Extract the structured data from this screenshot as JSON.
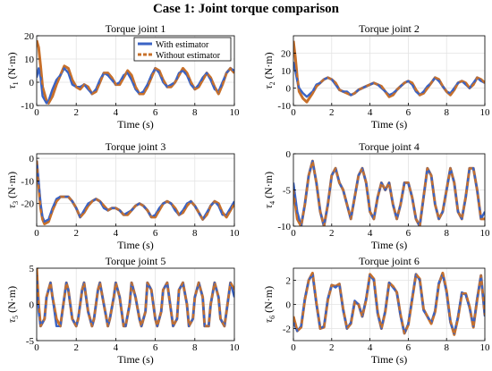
{
  "figure_title": "Case 1: Joint torque comparison",
  "colors": {
    "with_estimator": "#3a63c4",
    "without_estimator": "#c8702a",
    "axes": "#000000",
    "grid": "#e3e3e3"
  },
  "chart_data": [
    {
      "type": "line",
      "title": "Torque joint 1",
      "xlabel": "Time (s)",
      "ylabel_symbol": "τ",
      "ylabel_sub": "1",
      "ylabel_unit": "(N·m)",
      "xlim": [
        0,
        10
      ],
      "ylim": [
        -10,
        20
      ],
      "xticks": [
        0,
        2,
        4,
        6,
        8,
        10
      ],
      "yticks": [
        -10,
        0,
        10,
        20
      ],
      "grid": true,
      "legend": {
        "position": "top-right",
        "entries": [
          "With estimator",
          "Without estimator"
        ]
      },
      "x": [
        0,
        0.1,
        0.2,
        0.3,
        0.5,
        0.6,
        0.8,
        1.0,
        1.2,
        1.4,
        1.6,
        1.8,
        2.0,
        2.2,
        2.4,
        2.6,
        2.8,
        3.0,
        3.2,
        3.4,
        3.6,
        3.8,
        4.0,
        4.2,
        4.4,
        4.6,
        4.8,
        5.0,
        5.2,
        5.4,
        5.6,
        5.8,
        6.0,
        6.2,
        6.4,
        6.6,
        6.8,
        7.0,
        7.2,
        7.4,
        7.6,
        7.8,
        8.0,
        8.2,
        8.4,
        8.6,
        8.8,
        9.0,
        9.2,
        9.4,
        9.6,
        9.8,
        10.0
      ],
      "series": [
        {
          "name": "With estimator",
          "y": [
            2,
            6,
            2,
            -6,
            -9,
            -8,
            -3,
            1,
            3,
            6,
            4,
            -1,
            -2,
            -2,
            -1,
            -3,
            -5,
            -3,
            1,
            4,
            3,
            1,
            -1,
            0,
            3,
            4,
            1,
            -3,
            -5,
            -4,
            -1,
            3,
            6,
            4,
            0,
            -2,
            -1,
            0,
            4,
            5,
            3,
            -1,
            -3,
            -1,
            2,
            4,
            1,
            -3,
            -4,
            0,
            4,
            6,
            5
          ]
        },
        {
          "name": "Without estimator",
          "y": [
            18,
            15,
            7,
            -2,
            -8,
            -9,
            -6,
            -1,
            3,
            7,
            6,
            1,
            -2,
            -3,
            -1,
            -2,
            -5,
            -4,
            0,
            4,
            4,
            2,
            -1,
            -1,
            2,
            5,
            3,
            -2,
            -5,
            -5,
            -2,
            2,
            6,
            5,
            1,
            -2,
            -2,
            0,
            3,
            6,
            4,
            0,
            -3,
            -2,
            1,
            4,
            2,
            -2,
            -5,
            -1,
            4,
            6,
            4
          ]
        }
      ]
    },
    {
      "type": "line",
      "title": "Torque joint 2",
      "xlabel": "Time (s)",
      "ylabel_symbol": "τ",
      "ylabel_sub": "2",
      "ylabel_unit": "(N·m)",
      "xlim": [
        0,
        10
      ],
      "ylim": [
        -10,
        30
      ],
      "xticks": [
        0,
        2,
        4,
        6,
        8,
        10
      ],
      "yticks": [
        -10,
        0,
        10,
        20
      ],
      "grid": true,
      "x": [
        0,
        0.1,
        0.2,
        0.3,
        0.5,
        0.7,
        1.0,
        1.2,
        1.4,
        1.6,
        1.8,
        2.0,
        2.2,
        2.4,
        2.6,
        2.8,
        3.0,
        3.2,
        3.4,
        3.6,
        3.8,
        4.0,
        4.2,
        4.4,
        4.6,
        4.8,
        5.0,
        5.2,
        5.4,
        5.6,
        5.8,
        6.0,
        6.2,
        6.4,
        6.6,
        6.8,
        7.0,
        7.2,
        7.4,
        7.6,
        7.8,
        8.0,
        8.2,
        8.4,
        8.6,
        8.8,
        9.0,
        9.2,
        9.4,
        9.6,
        9.8,
        10.0
      ],
      "series": [
        {
          "name": "With estimator",
          "y": [
            15,
            10,
            4,
            0,
            -3,
            -5,
            -2,
            2,
            3,
            5,
            6,
            5,
            2,
            -1,
            -2,
            -2,
            -4,
            -3,
            -1,
            0,
            1,
            2,
            3,
            2,
            0,
            -2,
            -4,
            -3,
            -1,
            1,
            3,
            4,
            2,
            -2,
            -4,
            -2,
            1,
            3,
            6,
            4,
            1,
            -2,
            -3,
            0,
            3,
            4,
            2,
            0,
            3,
            6,
            4,
            3
          ]
        },
        {
          "name": "Without estimator",
          "y": [
            27,
            18,
            6,
            -2,
            -6,
            -8,
            -3,
            1,
            3,
            5,
            6,
            5,
            3,
            -1,
            -2,
            -3,
            -4,
            -3,
            -1,
            0,
            1,
            2,
            3,
            2,
            1,
            -2,
            -5,
            -4,
            -1,
            1,
            3,
            4,
            3,
            -1,
            -4,
            -3,
            0,
            3,
            6,
            5,
            1,
            -2,
            -4,
            -1,
            3,
            4,
            3,
            0,
            2,
            6,
            5,
            3
          ]
        }
      ]
    },
    {
      "type": "line",
      "title": "Torque joint 3",
      "xlabel": "Time (s)",
      "ylabel_symbol": "τ",
      "ylabel_sub": "3",
      "ylabel_unit": "(N·m)",
      "xlim": [
        0,
        10
      ],
      "ylim": [
        -30,
        2
      ],
      "xticks": [
        0,
        2,
        4,
        6,
        8,
        10
      ],
      "yticks": [
        -20,
        -10,
        0
      ],
      "grid": true,
      "x": [
        0,
        0.1,
        0.2,
        0.3,
        0.4,
        0.6,
        0.8,
        1.0,
        1.2,
        1.4,
        1.6,
        1.8,
        2.0,
        2.2,
        2.4,
        2.6,
        2.8,
        3.0,
        3.2,
        3.4,
        3.6,
        3.8,
        4.0,
        4.2,
        4.4,
        4.6,
        4.8,
        5.0,
        5.2,
        5.4,
        5.6,
        5.8,
        6.0,
        6.2,
        6.4,
        6.6,
        6.8,
        7.0,
        7.2,
        7.4,
        7.6,
        7.8,
        8.0,
        8.2,
        8.4,
        8.6,
        8.8,
        9.0,
        9.2,
        9.4,
        9.6,
        9.8,
        10.0
      ],
      "series": [
        {
          "name": "With estimator",
          "y": [
            -1,
            -10,
            -20,
            -26,
            -28,
            -27,
            -22,
            -18,
            -17,
            -17,
            -17,
            -19,
            -22,
            -26,
            -23,
            -20,
            -19,
            -18,
            -19,
            -22,
            -23,
            -22,
            -22,
            -23,
            -25,
            -24,
            -23,
            -21,
            -20,
            -21,
            -23,
            -26,
            -25,
            -22,
            -20,
            -19,
            -20,
            -23,
            -25,
            -23,
            -20,
            -19,
            -21,
            -24,
            -27,
            -24,
            -21,
            -19,
            -21,
            -25,
            -25,
            -22,
            -19
          ]
        },
        {
          "name": "Without estimator",
          "y": [
            -1,
            -12,
            -22,
            -27,
            -29,
            -28,
            -23,
            -19,
            -17,
            -17,
            -17,
            -19,
            -22,
            -26,
            -24,
            -21,
            -19,
            -18,
            -19,
            -21,
            -23,
            -22,
            -22,
            -23,
            -25,
            -25,
            -23,
            -21,
            -20,
            -21,
            -23,
            -26,
            -26,
            -23,
            -20,
            -19,
            -20,
            -22,
            -25,
            -24,
            -21,
            -19,
            -21,
            -24,
            -27,
            -25,
            -21,
            -19,
            -20,
            -24,
            -26,
            -23,
            -20
          ]
        }
      ]
    },
    {
      "type": "line",
      "title": "Torque joint 4",
      "xlabel": "Time (s)",
      "ylabel_symbol": "τ",
      "ylabel_sub": "4",
      "ylabel_unit": "(N·m)",
      "xlim": [
        0,
        10
      ],
      "ylim": [
        -10,
        0
      ],
      "xticks": [
        0,
        2,
        4,
        6,
        8,
        10
      ],
      "yticks": [
        -10,
        -5,
        0
      ],
      "grid": true,
      "x": [
        0,
        0.2,
        0.4,
        0.6,
        0.8,
        1.0,
        1.2,
        1.4,
        1.6,
        1.8,
        2.0,
        2.2,
        2.4,
        2.6,
        2.8,
        3.0,
        3.2,
        3.4,
        3.6,
        3.8,
        4.0,
        4.2,
        4.4,
        4.6,
        4.8,
        5.0,
        5.2,
        5.4,
        5.6,
        5.8,
        6.0,
        6.2,
        6.4,
        6.6,
        6.8,
        7.0,
        7.2,
        7.4,
        7.6,
        7.8,
        8.0,
        8.2,
        8.4,
        8.6,
        8.8,
        9.0,
        9.2,
        9.4,
        9.6,
        9.8,
        10.0
      ],
      "series": [
        {
          "name": "With estimator",
          "y": [
            -4,
            -8,
            -10,
            -7,
            -3,
            -1,
            -4,
            -8,
            -10,
            -7,
            -3,
            -2,
            -4,
            -5,
            -7,
            -9,
            -6,
            -3,
            -2,
            -4,
            -8,
            -9,
            -6,
            -4,
            -5,
            -4,
            -7,
            -9,
            -7,
            -4,
            -4,
            -6,
            -9,
            -10,
            -6,
            -2,
            -3,
            -7,
            -9,
            -8,
            -5,
            -2,
            -4,
            -8,
            -9,
            -6,
            -2,
            -2,
            -5,
            -9,
            -8
          ]
        },
        {
          "name": "Without estimator",
          "y": [
            -5,
            -9,
            -10,
            -7,
            -3,
            -1,
            -4,
            -8,
            -10,
            -7,
            -3,
            -2,
            -4,
            -5,
            -7,
            -9,
            -6,
            -3,
            -2,
            -4,
            -8,
            -9,
            -6,
            -4,
            -5,
            -4,
            -7,
            -9,
            -7,
            -4,
            -4,
            -6,
            -9,
            -10,
            -6,
            -2,
            -3,
            -7,
            -9,
            -8,
            -5,
            -2,
            -4,
            -8,
            -9,
            -6,
            -2,
            -2,
            -5,
            -9,
            -9
          ]
        }
      ]
    },
    {
      "type": "line",
      "title": "Torque joint 5",
      "xlabel": "Time (s)",
      "ylabel_symbol": "τ",
      "ylabel_sub": "5",
      "ylabel_unit": "(N·m)",
      "xlim": [
        0,
        10
      ],
      "ylim": [
        -5,
        5
      ],
      "xticks": [
        0,
        2,
        4,
        6,
        8,
        10
      ],
      "yticks": [
        -5,
        0,
        5
      ],
      "grid": true,
      "x": [
        0,
        0.1,
        0.2,
        0.4,
        0.5,
        0.7,
        0.8,
        1.0,
        1.2,
        1.3,
        1.5,
        1.6,
        1.8,
        2.0,
        2.1,
        2.3,
        2.4,
        2.6,
        2.8,
        2.9,
        3.1,
        3.2,
        3.4,
        3.6,
        3.7,
        3.9,
        4.0,
        4.2,
        4.4,
        4.5,
        4.7,
        4.8,
        5.0,
        5.2,
        5.3,
        5.5,
        5.6,
        5.8,
        6.0,
        6.1,
        6.3,
        6.4,
        6.6,
        6.8,
        6.9,
        7.1,
        7.2,
        7.4,
        7.6,
        7.7,
        7.9,
        8.0,
        8.2,
        8.4,
        8.5,
        8.7,
        8.8,
        9.0,
        9.2,
        9.3,
        9.5,
        9.6,
        9.8,
        10.0
      ],
      "series": [
        {
          "name": "With estimator",
          "y": [
            4,
            -1,
            -3,
            -2,
            1,
            3,
            1,
            -3,
            -3,
            -1,
            3,
            2,
            -2,
            -3,
            -2,
            2,
            3,
            -1,
            -3,
            -2,
            2,
            3,
            0,
            -3,
            -2,
            1,
            3,
            1,
            -3,
            -3,
            0,
            3,
            1,
            -2,
            -3,
            -1,
            3,
            2,
            -2,
            -3,
            -1,
            2,
            3,
            -1,
            -3,
            -2,
            2,
            3,
            0,
            -3,
            -2,
            1,
            3,
            1,
            -3,
            -3,
            0,
            3,
            1,
            -2,
            -3,
            -1,
            3,
            1
          ]
        },
        {
          "name": "Without estimator",
          "y": [
            5,
            0,
            -3,
            -2,
            1,
            3,
            1,
            -2,
            -3,
            -1,
            3,
            2,
            -2,
            -3,
            -2,
            2,
            3,
            -1,
            -3,
            -2,
            2,
            3,
            0,
            -3,
            -2,
            1,
            3,
            1,
            -3,
            -3,
            0,
            3,
            1,
            -2,
            -3,
            -1,
            3,
            2,
            -2,
            -3,
            -1,
            2,
            3,
            -1,
            -3,
            -2,
            2,
            3,
            0,
            -3,
            -2,
            1,
            3,
            1,
            -3,
            -3,
            0,
            3,
            1,
            -2,
            -3,
            -1,
            3,
            2
          ]
        }
      ]
    },
    {
      "type": "line",
      "title": "Torque joint 6",
      "xlabel": "Time (s)",
      "ylabel_symbol": "τ",
      "ylabel_sub": "6",
      "ylabel_unit": "(N·m)",
      "xlim": [
        0,
        10
      ],
      "ylim": [
        -3,
        3
      ],
      "xticks": [
        0,
        2,
        4,
        6,
        8,
        10
      ],
      "yticks": [
        -2,
        0,
        2
      ],
      "grid": true,
      "x": [
        0,
        0.2,
        0.4,
        0.6,
        0.8,
        1.0,
        1.2,
        1.4,
        1.6,
        1.8,
        2.0,
        2.2,
        2.4,
        2.6,
        2.8,
        3.0,
        3.2,
        3.4,
        3.6,
        3.8,
        4.0,
        4.2,
        4.4,
        4.6,
        4.8,
        5.0,
        5.2,
        5.4,
        5.6,
        5.8,
        6.0,
        6.2,
        6.4,
        6.6,
        6.8,
        7.0,
        7.2,
        7.4,
        7.6,
        7.8,
        8.0,
        8.2,
        8.4,
        8.6,
        8.8,
        9.0,
        9.2,
        9.4,
        9.6,
        9.8,
        10.0
      ],
      "series": [
        {
          "name": "With estimator",
          "y": [
            -1.5,
            -2.2,
            -1.8,
            0.5,
            2.0,
            2.5,
            0.0,
            -2.0,
            -1.8,
            0.5,
            1.6,
            1.4,
            1.7,
            -0.5,
            -2.0,
            -1.5,
            0.3,
            0.0,
            -1.0,
            0.5,
            2.4,
            2.0,
            -0.8,
            -2.0,
            -0.5,
            1.8,
            1.4,
            1.0,
            -1.0,
            -2.4,
            -1.6,
            0.5,
            2.5,
            2.0,
            -0.5,
            -1.0,
            -1.5,
            -0.5,
            1.8,
            2.5,
            1.0,
            -1.5,
            -2.4,
            -1.0,
            1.0,
            0.8,
            -0.3,
            -1.8,
            0.5,
            2.4,
            -1.0
          ]
        },
        {
          "name": "Without estimator",
          "y": [
            -1.0,
            -2.2,
            -1.9,
            0.4,
            2.0,
            2.6,
            0.1,
            -2.0,
            -1.9,
            0.4,
            1.6,
            1.5,
            1.7,
            -0.4,
            -2.0,
            -1.6,
            0.2,
            0.0,
            -1.0,
            0.4,
            2.5,
            2.1,
            -0.7,
            -2.0,
            -0.6,
            1.8,
            1.5,
            1.0,
            -0.9,
            -2.4,
            -1.7,
            0.4,
            2.5,
            2.1,
            -0.4,
            -1.0,
            -1.6,
            -0.6,
            1.7,
            2.6,
            1.1,
            -1.4,
            -2.5,
            -1.1,
            0.9,
            0.9,
            -0.2,
            -1.9,
            0.4,
            2.4,
            -0.9
          ]
        }
      ]
    }
  ]
}
